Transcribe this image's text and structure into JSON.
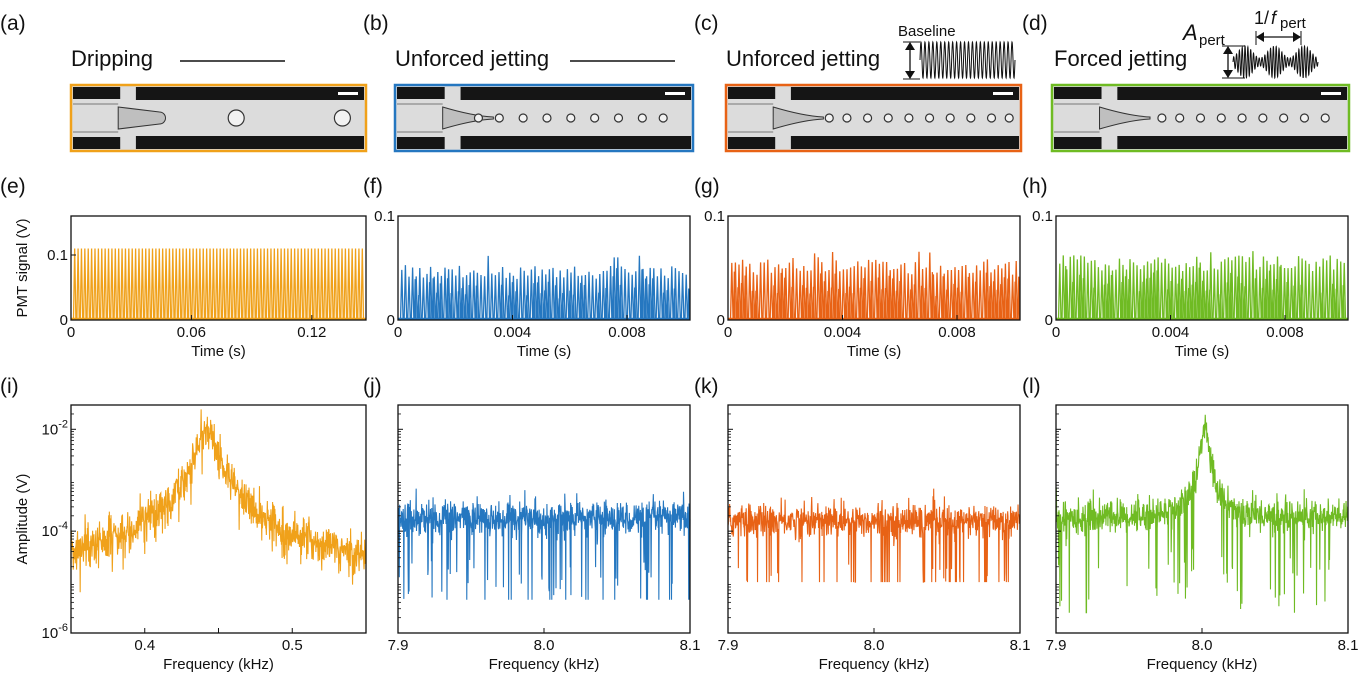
{
  "colors": {
    "dripping": "#f0a11a",
    "unforced_b": "#2577c0",
    "unforced_c": "#e86215",
    "forced": "#6fbb23",
    "channel_dark": "#151515",
    "channel_light": "#dcdcdc"
  },
  "panels": {
    "top": [
      {
        "label": "(a)",
        "title": "Dripping",
        "color": "#f0a11a",
        "drops": [
          0.56,
          0.92
        ],
        "drop_sizes": [
          8,
          8
        ],
        "jet": false
      },
      {
        "label": "(b)",
        "title": "Unforced jetting",
        "color": "#2577c0",
        "drops": [
          0.28,
          0.35,
          0.43,
          0.51,
          0.59,
          0.67,
          0.75,
          0.83,
          0.9
        ],
        "jet": true
      },
      {
        "label": "(c)",
        "title": "Unforced jetting",
        "color": "#e86215",
        "drops": [
          0.35,
          0.41,
          0.48,
          0.55,
          0.62,
          0.69,
          0.76,
          0.83,
          0.9,
          0.96
        ],
        "jet": true
      },
      {
        "label": "(d)",
        "title": "Forced jetting",
        "color": "#6fbb23",
        "drops": [
          0.37,
          0.43,
          0.5,
          0.57,
          0.64,
          0.71,
          0.78,
          0.85,
          0.92
        ],
        "jet": true
      }
    ],
    "insets": {
      "baseline_label": "Baseline",
      "amp_symbol": "A",
      "amp_sub": "pert",
      "period_prefix": "1/",
      "period_symbol": "f",
      "period_sub": "pert"
    },
    "mid_labels": [
      "(e)",
      "(f)",
      "(g)",
      "(h)"
    ],
    "bot_labels": [
      "(i)",
      "(j)",
      "(k)",
      "(l)"
    ]
  },
  "chart_data": [
    {
      "type": "line",
      "panel": "e",
      "series": [
        {
          "name": "",
          "color": "#f0a11a"
        }
      ],
      "xlabel": "Time (s)",
      "ylabel": "PMT signal (V)",
      "xlim": [
        0,
        0.147
      ],
      "ylim": [
        0,
        0.16
      ],
      "xticks": [
        0,
        0.06,
        0.12
      ],
      "xticklabels": [
        "0",
        "0.06",
        "0.12"
      ],
      "yticks": [
        0,
        0.1
      ],
      "yticklabels": [
        "0",
        "0.1"
      ],
      "signal": {
        "kind": "pulses",
        "count": 86,
        "amplitude": 0.11
      }
    },
    {
      "type": "line",
      "panel": "f",
      "series": [
        {
          "name": "",
          "color": "#2577c0"
        }
      ],
      "xlabel": "Time (s)",
      "ylabel": "",
      "xlim": [
        0,
        0.0102
      ],
      "ylim": [
        0,
        0.1
      ],
      "xticks": [
        0,
        0.004,
        0.008
      ],
      "xticklabels": [
        "0",
        "0.004",
        "0.008"
      ],
      "yticks": [
        0,
        0.1
      ],
      "yticklabels": [
        "0",
        "0.1"
      ],
      "signal": {
        "kind": "pulses",
        "count": 80,
        "amplitude": 0.048,
        "max": 0.064
      }
    },
    {
      "type": "line",
      "panel": "g",
      "series": [
        {
          "name": "",
          "color": "#e86215"
        }
      ],
      "xlabel": "Time (s)",
      "ylabel": "",
      "xlim": [
        0,
        0.0102
      ],
      "ylim": [
        0,
        0.1
      ],
      "xticks": [
        0,
        0.004,
        0.008
      ],
      "xticklabels": [
        "0",
        "0.004",
        "0.008"
      ],
      "yticks": [
        0,
        0.1
      ],
      "yticklabels": [
        "0",
        "0.1"
      ],
      "signal": {
        "kind": "pulses",
        "count": 80,
        "amplitude": 0.053,
        "max": 0.066
      }
    },
    {
      "type": "line",
      "panel": "h",
      "series": [
        {
          "name": "",
          "color": "#6fbb23"
        }
      ],
      "xlabel": "Time (s)",
      "ylabel": "",
      "xlim": [
        0,
        0.0102
      ],
      "ylim": [
        0,
        0.1
      ],
      "xticks": [
        0,
        0.004,
        0.008
      ],
      "xticklabels": [
        "0",
        "0.004",
        "0.008"
      ],
      "yticks": [
        0,
        0.1
      ],
      "yticklabels": [
        "0",
        "0.1"
      ],
      "signal": {
        "kind": "pulses",
        "count": 82,
        "amplitude": 0.057,
        "max": 0.068
      }
    },
    {
      "type": "line",
      "panel": "i",
      "series": [
        {
          "name": "",
          "color": "#f0a11a"
        }
      ],
      "xlabel": "Frequency (kHz)",
      "ylabel": "Amplitude (V)",
      "xlim": [
        0.35,
        0.55
      ],
      "ylim": [
        1e-06,
        0.03
      ],
      "yscale": "log",
      "xticks": [
        0.4,
        0.45,
        0.5
      ],
      "xticklabels": [
        "0.4",
        "",
        "0.5"
      ],
      "yticks": [
        1e-06,
        0.0001,
        0.01
      ],
      "yticklabels": [
        "10-6",
        "10-4",
        "10-2"
      ],
      "signal": {
        "kind": "peak",
        "center": 0.442,
        "width": 0.005,
        "peak": 0.011,
        "floor": 1e-05
      }
    },
    {
      "type": "line",
      "panel": "j",
      "series": [
        {
          "name": "",
          "color": "#2577c0"
        }
      ],
      "xlabel": "Frequency (kHz)",
      "ylabel": "",
      "xlim": [
        7.9,
        8.1
      ],
      "ylim": [
        1e-06,
        0.03
      ],
      "yscale": "log",
      "xticks": [
        7.9,
        8.0,
        8.1
      ],
      "xticklabels": [
        "7.9",
        "8.0",
        "8.1"
      ],
      "yticks": [
        1e-06,
        0.0001,
        0.01
      ],
      "yticklabels": [
        "",
        "",
        ""
      ],
      "signal": {
        "kind": "noise",
        "floor": 0.00018,
        "min": 4.5e-06
      }
    },
    {
      "type": "line",
      "panel": "k",
      "series": [
        {
          "name": "",
          "color": "#e86215"
        }
      ],
      "xlabel": "Frequency (kHz)",
      "ylabel": "",
      "xlim": [
        7.9,
        8.1
      ],
      "ylim": [
        1e-06,
        0.03
      ],
      "yscale": "log",
      "xticks": [
        7.9,
        8.0,
        8.1
      ],
      "xticklabels": [
        "7.9",
        "8.0",
        "8.1"
      ],
      "yticks": [
        1e-06,
        0.0001,
        0.01
      ],
      "yticklabels": [
        "",
        "",
        ""
      ],
      "signal": {
        "kind": "noise",
        "floor": 0.00016,
        "min": 1e-05
      }
    },
    {
      "type": "line",
      "panel": "l",
      "series": [
        {
          "name": "",
          "color": "#6fbb23"
        }
      ],
      "xlabel": "Frequency (kHz)",
      "ylabel": "",
      "xlim": [
        7.9,
        8.1
      ],
      "ylim": [
        1e-06,
        0.03
      ],
      "yscale": "log",
      "xticks": [
        7.9,
        8.0,
        8.1
      ],
      "xticklabels": [
        "7.9",
        "8.0",
        "8.1"
      ],
      "yticks": [
        1e-06,
        0.0001,
        0.01
      ],
      "yticklabels": [
        "",
        "",
        ""
      ],
      "signal": {
        "kind": "peak_noise",
        "center": 8.002,
        "width": 0.002,
        "peak": 0.011,
        "floor": 0.00018,
        "min": 2.5e-06
      }
    }
  ]
}
